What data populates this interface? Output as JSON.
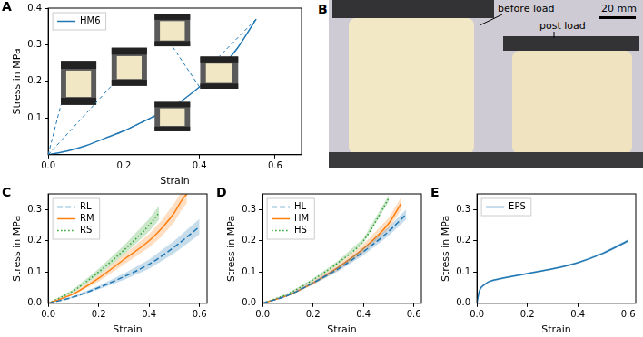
{
  "chart_data": [
    {
      "type": "line",
      "title": "A",
      "x_label": "Strain",
      "y_label": "Stress in MPa",
      "xlim": [
        0,
        0.67
      ],
      "xticks": [
        {
          "value": 0,
          "label": "0.0"
        },
        0.2,
        0.4,
        0.6
      ],
      "ylim": [
        0,
        0.4
      ],
      "yticks": [
        0.1,
        0.2,
        0.3,
        0.4
      ],
      "grid": false,
      "legend": "upper left",
      "series": [
        {
          "name": "HM6",
          "color": "#1f77b4",
          "line_style": "solid",
          "x": [
            0,
            0.05,
            0.1,
            0.15,
            0.2,
            0.25,
            0.3,
            0.35,
            0.4,
            0.45,
            0.5,
            0.55
          ],
          "values": [
            0,
            0.01,
            0.025,
            0.045,
            0.065,
            0.09,
            0.115,
            0.145,
            0.185,
            0.23,
            0.29,
            0.37
          ]
        }
      ]
    },
    {
      "type": "line",
      "title": "C",
      "x_label": "Strain",
      "y_label": "Stress in MPa",
      "xlim": [
        0,
        0.63
      ],
      "xticks": [
        {
          "value": 0,
          "label": "0.0"
        },
        0.2,
        0.4,
        0.6
      ],
      "ylim": [
        0,
        0.35
      ],
      "yticks": [
        {
          "value": 0,
          "label": "0.0"
        },
        0.1,
        0.2,
        0.3
      ],
      "grid": false,
      "legend": "upper left",
      "series": [
        {
          "name": "RL",
          "color": "#1f77b4",
          "line_style": "dashed",
          "x": [
            0,
            0.1,
            0.2,
            0.3,
            0.4,
            0.5,
            0.6
          ],
          "values": [
            0,
            0.02,
            0.05,
            0.085,
            0.125,
            0.18,
            0.245
          ],
          "error": [
            0,
            0.003,
            0.006,
            0.01,
            0.015,
            0.02,
            0.025
          ]
        },
        {
          "name": "RM",
          "color": "#ff7f0e",
          "line_style": "solid",
          "x": [
            0,
            0.1,
            0.2,
            0.3,
            0.4,
            0.45,
            0.5,
            0.53,
            0.55
          ],
          "values": [
            0,
            0.03,
            0.08,
            0.14,
            0.2,
            0.24,
            0.29,
            0.33,
            0.35
          ],
          "error": [
            0,
            0.004,
            0.01,
            0.016,
            0.022,
            0.026,
            0.03,
            0.03,
            0.03
          ]
        },
        {
          "name": "RS",
          "color": "#2ca02c",
          "line_style": "dotted",
          "x": [
            0,
            0.1,
            0.2,
            0.3,
            0.4,
            0.44
          ],
          "values": [
            0,
            0.04,
            0.1,
            0.17,
            0.25,
            0.29
          ],
          "error": [
            0,
            0.005,
            0.01,
            0.015,
            0.02,
            0.022
          ]
        }
      ]
    },
    {
      "type": "line",
      "title": "D",
      "x_label": "Strain",
      "y_label": "Stress in MPa",
      "xlim": [
        0,
        0.63
      ],
      "xticks": [
        {
          "value": 0,
          "label": "0.0"
        },
        0.2,
        0.4,
        0.6
      ],
      "ylim": [
        0,
        0.35
      ],
      "yticks": [
        {
          "value": 0,
          "label": "0.0"
        },
        0.1,
        0.2,
        0.3
      ],
      "grid": false,
      "legend": "upper left",
      "series": [
        {
          "name": "HL",
          "color": "#1f77b4",
          "line_style": "dashed",
          "x": [
            0,
            0.1,
            0.2,
            0.3,
            0.4,
            0.5,
            0.57
          ],
          "values": [
            0,
            0.025,
            0.065,
            0.11,
            0.165,
            0.23,
            0.285
          ],
          "error": [
            0,
            0.003,
            0.005,
            0.008,
            0.011,
            0.014,
            0.016
          ]
        },
        {
          "name": "HM",
          "color": "#ff7f0e",
          "line_style": "solid",
          "x": [
            0,
            0.1,
            0.2,
            0.3,
            0.4,
            0.5,
            0.55
          ],
          "values": [
            0,
            0.025,
            0.065,
            0.115,
            0.175,
            0.255,
            0.32
          ],
          "error": [
            0,
            0.003,
            0.006,
            0.01,
            0.014,
            0.018,
            0.02
          ]
        },
        {
          "name": "HS",
          "color": "#2ca02c",
          "line_style": "dotted",
          "x": [
            0,
            0.1,
            0.2,
            0.3,
            0.4,
            0.5
          ],
          "values": [
            0,
            0.03,
            0.075,
            0.13,
            0.2,
            0.335
          ],
          "error": [
            0,
            0.002,
            0.004,
            0.006,
            0.008,
            0.01
          ]
        }
      ]
    },
    {
      "type": "line",
      "title": "E",
      "x_label": "Strain",
      "y_label": "Stress in MPa",
      "xlim": [
        0,
        0.63
      ],
      "xticks": [
        {
          "value": 0,
          "label": "0.0"
        },
        0.2,
        0.4,
        0.6
      ],
      "ylim": [
        0,
        0.35
      ],
      "yticks": [
        {
          "value": 0,
          "label": "0.0"
        },
        0.1,
        0.2,
        0.3
      ],
      "grid": false,
      "legend": "upper left",
      "series": [
        {
          "name": "EPS",
          "color": "#1f77b4",
          "line_style": "solid",
          "x": [
            0,
            0.01,
            0.03,
            0.05,
            0.1,
            0.2,
            0.3,
            0.4,
            0.5,
            0.6
          ],
          "values": [
            0,
            0.04,
            0.06,
            0.07,
            0.08,
            0.095,
            0.11,
            0.13,
            0.16,
            0.2
          ],
          "error": [
            0,
            0.002,
            0.003,
            0.003,
            0.003,
            0.003,
            0.003,
            0.003,
            0.004,
            0.005
          ]
        }
      ]
    }
  ],
  "photo_panel": {
    "title": "B",
    "labels": [
      "before load",
      "post load"
    ],
    "scale_bar": "20 mm"
  }
}
